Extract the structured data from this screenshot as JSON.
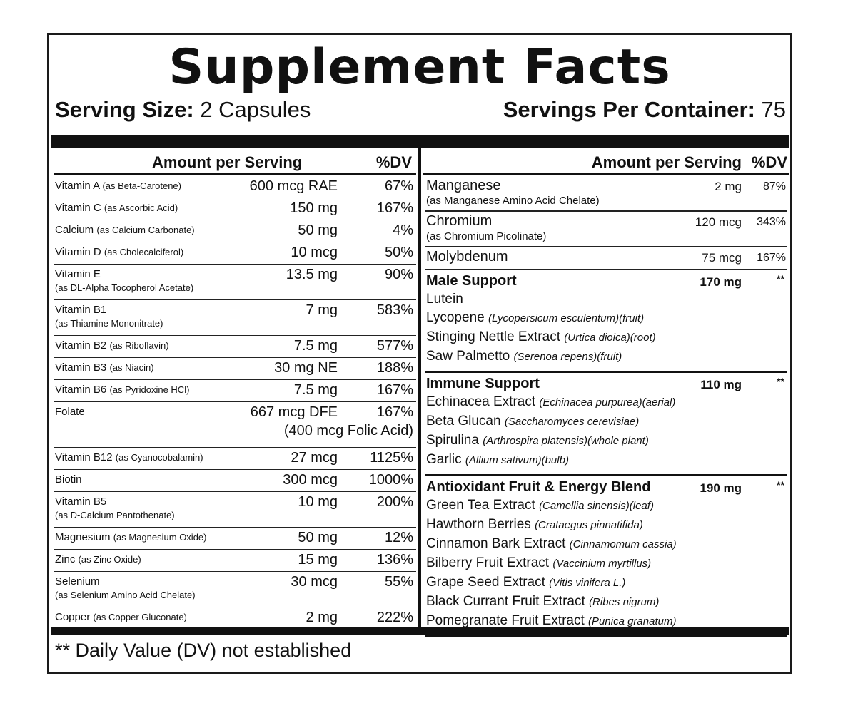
{
  "title": "Supplement Facts",
  "serving_size": {
    "label": "Serving Size:",
    "value": "2 Capsules"
  },
  "servings_per_container": {
    "label": "Servings Per Container:",
    "value": "75"
  },
  "left_header": {
    "amount": "Amount per Serving",
    "dv": "%DV"
  },
  "right_header": {
    "amount": "Amount per Serving",
    "dv": "%DV"
  },
  "left_rows": [
    {
      "name": "Vitamin A",
      "source": "(as Beta-Carotene)",
      "amount": "600 mcg RAE",
      "dv": "67%"
    },
    {
      "name": "Vitamin C",
      "source": "(as Ascorbic Acid)",
      "amount": "150 mg",
      "dv": "167%"
    },
    {
      "name": "Calcium",
      "source": "(as Calcium Carbonate)",
      "amount": "50 mg",
      "dv": "4%"
    },
    {
      "name": "Vitamin D",
      "source": "(as Cholecalciferol)",
      "amount": "10 mcg",
      "dv": "50%"
    },
    {
      "name": "Vitamin E",
      "source": "(as DL-Alpha Tocopherol Acetate)",
      "amount": "13.5 mg",
      "dv": "90%"
    },
    {
      "name": "Vitamin B1",
      "source": "(as Thiamine Mononitrate)",
      "amount": "7 mg",
      "dv": "583%"
    },
    {
      "name": "Vitamin B2",
      "source": "(as Riboflavin)",
      "amount": "7.5 mg",
      "dv": "577%"
    },
    {
      "name": "Vitamin B3",
      "source": "(as Niacin)",
      "amount": "30 mg NE",
      "dv": "188%"
    },
    {
      "name": "Vitamin B6",
      "source": "(as Pyridoxine HCl)",
      "amount": "7.5 mg",
      "dv": "167%"
    },
    {
      "name": "Folate",
      "source": "",
      "amount": "667 mcg DFE",
      "amount2": "(400 mcg Folic Acid)",
      "dv": "167%"
    },
    {
      "name": "Vitamin B12",
      "source": "(as Cyanocobalamin)",
      "amount": "27 mcg",
      "dv": "1125%"
    },
    {
      "name": "Biotin",
      "source": "",
      "amount": "300 mcg",
      "dv": "1000%"
    },
    {
      "name": "Vitamin B5",
      "source": "(as D-Calcium Pantothenate)",
      "amount": "10 mg",
      "dv": "200%"
    },
    {
      "name": "Magnesium",
      "source": "(as Magnesium Oxide)",
      "amount": "50 mg",
      "dv": "12%"
    },
    {
      "name": "Zinc",
      "source": "(as Zinc Oxide)",
      "amount": "15 mg",
      "dv": "136%"
    },
    {
      "name": "Selenium",
      "source": "(as Selenium Amino Acid Chelate)",
      "amount": "30 mcg",
      "dv": "55%"
    },
    {
      "name": "Copper",
      "source": "(as Copper Gluconate)",
      "amount": "2 mg",
      "dv": "222%"
    }
  ],
  "right_rows": [
    {
      "name": "Manganese",
      "source": "(as Manganese Amino Acid Chelate)",
      "amount": "2 mg",
      "dv": "87%"
    },
    {
      "name": "Chromium",
      "source": "(as Chromium Picolinate)",
      "amount": "120 mcg",
      "dv": "343%"
    },
    {
      "name": "Molybdenum",
      "source": "",
      "amount": "75 mcg",
      "dv": "167%"
    }
  ],
  "blends": [
    {
      "name": "Male Support",
      "amount": "170 mg",
      "dv": "**",
      "ingredients": [
        {
          "name": "Lutein",
          "latin": ""
        },
        {
          "name": "Lycopene",
          "latin": "(Lycopersicum esculentum)(fruit)"
        },
        {
          "name": "Stinging Nettle Extract",
          "latin": "(Urtica dioica)(root)"
        },
        {
          "name": "Saw Palmetto",
          "latin": "(Serenoa repens)(fruit)"
        }
      ]
    },
    {
      "name": "Immune Support",
      "amount": "110 mg",
      "dv": "**",
      "ingredients": [
        {
          "name": "Echinacea Extract",
          "latin": "(Echinacea purpurea)(aerial)"
        },
        {
          "name": "Beta Glucan",
          "latin": "(Saccharomyces cerevisiae)"
        },
        {
          "name": "Spirulina",
          "latin": "(Arthrospira platensis)(whole plant)"
        },
        {
          "name": "Garlic",
          "latin": "(Allium sativum)(bulb)"
        }
      ]
    },
    {
      "name": "Antioxidant Fruit & Energy Blend",
      "amount": "190 mg",
      "dv": "**",
      "ingredients": [
        {
          "name": "Green Tea Extract",
          "latin": "(Camellia sinensis)(leaf)"
        },
        {
          "name": "Hawthorn Berries",
          "latin": "(Crataegus pinnatifida)"
        },
        {
          "name": "Cinnamon Bark Extract",
          "latin": "(Cinnamomum cassia)"
        },
        {
          "name": "Bilberry Fruit Extract",
          "latin": "(Vaccinium myrtillus)"
        },
        {
          "name": "Grape Seed Extract",
          "latin": "(Vitis vinifera L.)"
        },
        {
          "name": "Black Currant Fruit Extract",
          "latin": "(Ribes nigrum)"
        },
        {
          "name": "Pomegranate Fruit Extract",
          "latin": "(Punica granatum)"
        }
      ]
    }
  ],
  "footnote": "** Daily Value (DV) not established"
}
